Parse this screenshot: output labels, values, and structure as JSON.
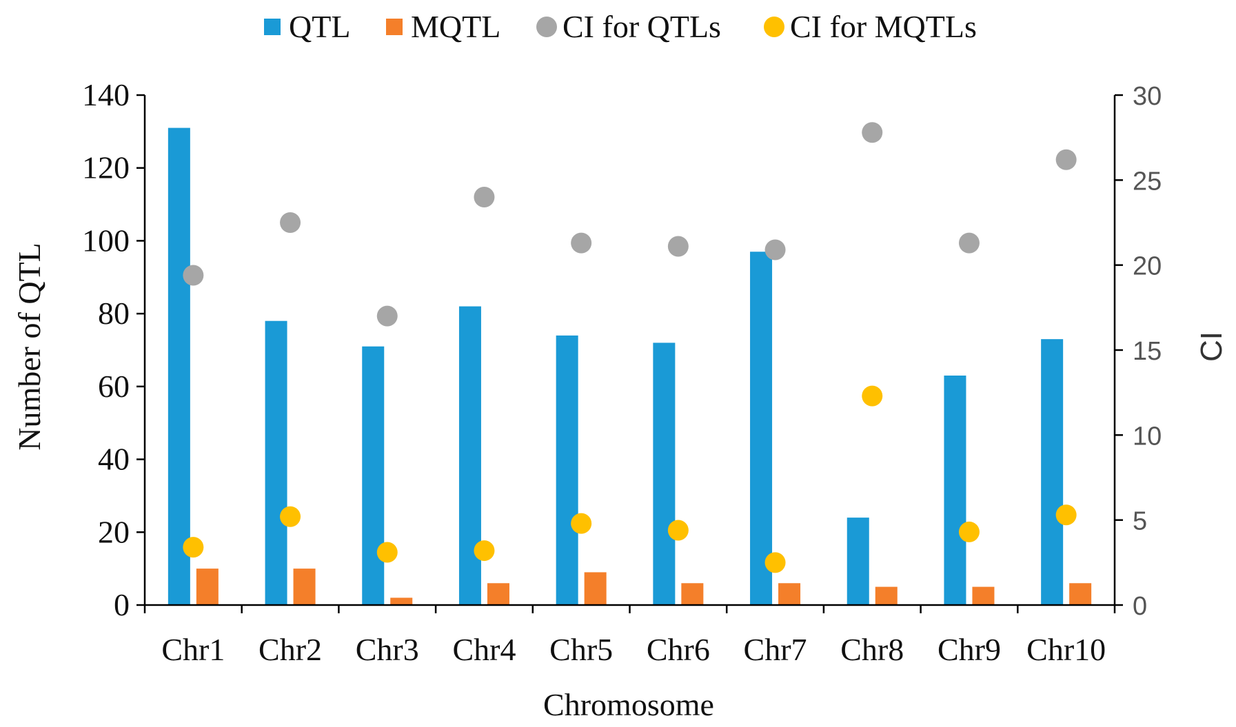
{
  "chart_data": {
    "type": "bar",
    "title": "",
    "xlabel": "Chromosome",
    "ylabel": "Number of QTL",
    "y2label": "CI",
    "categories": [
      "Chr1",
      "Chr2",
      "Chr3",
      "Chr4",
      "Chr5",
      "Chr6",
      "Chr7",
      "Chr8",
      "Chr9",
      "Chr10"
    ],
    "ylim": [
      0,
      140
    ],
    "yticks": [
      "0",
      "20",
      "40",
      "60",
      "80",
      "100",
      "120",
      "140"
    ],
    "y2lim": [
      0,
      30
    ],
    "y2ticks": [
      "0",
      "5",
      "10",
      "15",
      "20",
      "25",
      "30"
    ],
    "legend_position": "top",
    "grid": false,
    "series": [
      {
        "name": "QTL",
        "kind": "bar",
        "axis": "left",
        "color": "#1a9ad6",
        "values": [
          131,
          78,
          71,
          82,
          74,
          72,
          97,
          24,
          63,
          73
        ]
      },
      {
        "name": "MQTL",
        "kind": "bar",
        "axis": "left",
        "color": "#f47f2a",
        "values": [
          10,
          10,
          2,
          6,
          9,
          6,
          6,
          5,
          5,
          6
        ]
      },
      {
        "name": "CI for QTLs",
        "kind": "scatter",
        "axis": "right",
        "color": "#a6a6a6",
        "values": [
          19.4,
          22.5,
          17.0,
          24.0,
          21.3,
          21.1,
          20.9,
          27.8,
          21.3,
          26.2
        ]
      },
      {
        "name": "CI for MQTLs",
        "kind": "scatter",
        "axis": "right",
        "color": "#ffc000",
        "values": [
          3.4,
          5.2,
          3.1,
          3.2,
          4.8,
          4.4,
          2.5,
          12.3,
          4.3,
          5.3
        ]
      }
    ]
  }
}
